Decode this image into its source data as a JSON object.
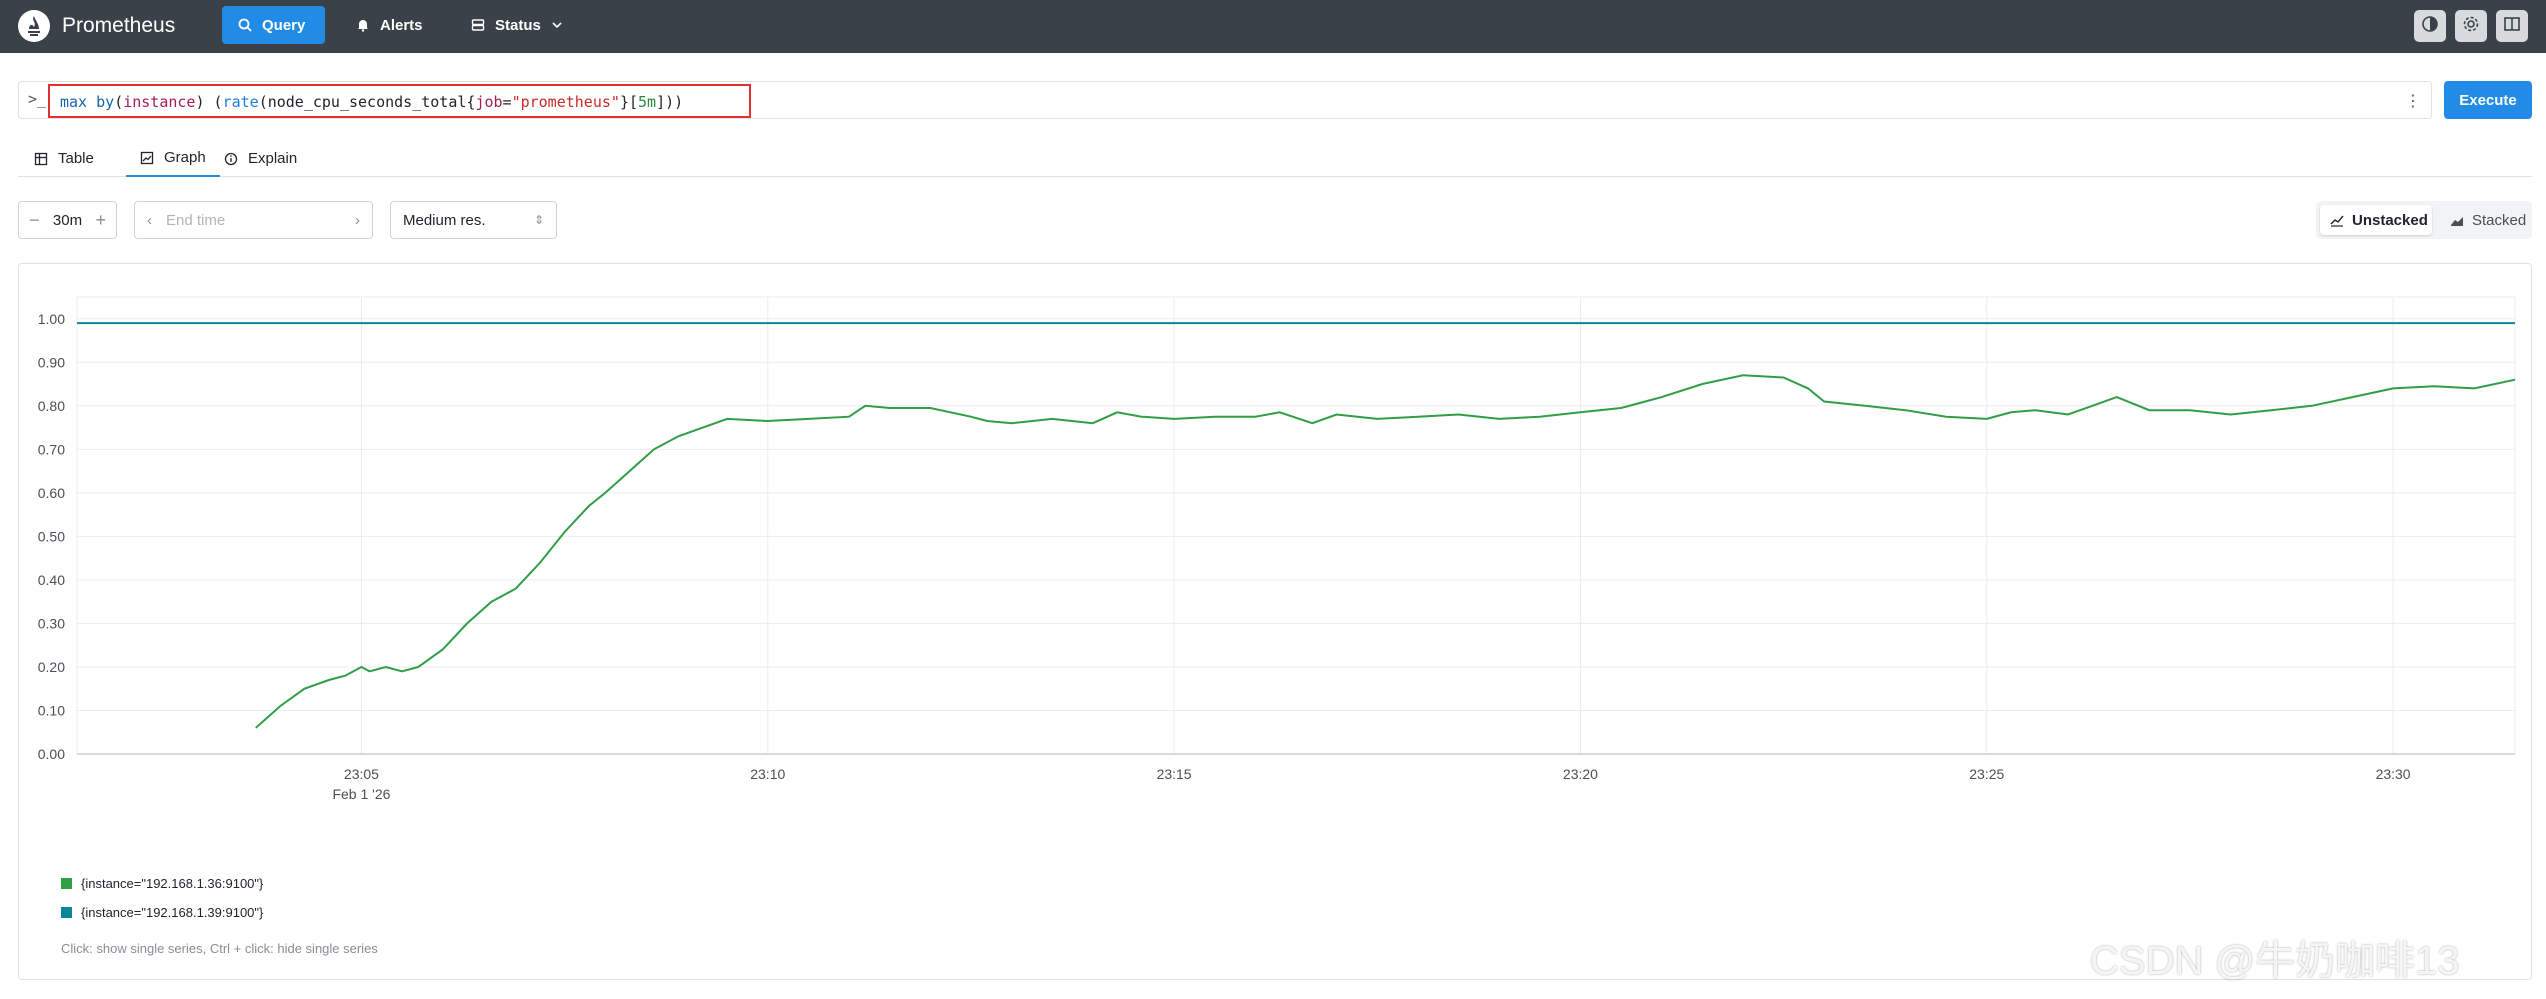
{
  "app": {
    "title": "Prometheus"
  },
  "nav": {
    "query": "Query",
    "alerts": "Alerts",
    "status": "Status"
  },
  "query": {
    "tokens": [
      {
        "t": "max",
        "c": "kw"
      },
      {
        "t": " ",
        "c": "p"
      },
      {
        "t": "by",
        "c": "kw"
      },
      {
        "t": "(",
        "c": "p"
      },
      {
        "t": "instance",
        "c": "lbl"
      },
      {
        "t": ")",
        "c": "p"
      },
      {
        "t": " (",
        "c": "p"
      },
      {
        "t": "rate",
        "c": "fn"
      },
      {
        "t": "(",
        "c": "p"
      },
      {
        "t": "node_cpu_seconds_total",
        "c": "p"
      },
      {
        "t": "{",
        "c": "p"
      },
      {
        "t": "job",
        "c": "lbl"
      },
      {
        "t": "=",
        "c": "p"
      },
      {
        "t": "\"prometheus\"",
        "c": "str"
      },
      {
        "t": "}",
        "c": "p"
      },
      {
        "t": "[",
        "c": "p"
      },
      {
        "t": "5m",
        "c": "num"
      },
      {
        "t": "]))",
        "c": "p"
      }
    ],
    "execute_label": "Execute"
  },
  "tabs": {
    "table": "Table",
    "graph": "Graph",
    "explain": "Explain"
  },
  "controls": {
    "range": "30m",
    "end_time_placeholder": "End time",
    "resolution": "Medium res.",
    "unstacked": "Unstacked",
    "stacked": "Stacked"
  },
  "chart_data": {
    "type": "line",
    "title": "",
    "xlabel": "",
    "ylabel": "",
    "ylim": [
      0,
      1.05
    ],
    "y_ticks": [
      0,
      0.1,
      0.2,
      0.3,
      0.4,
      0.5,
      0.6,
      0.7,
      0.8,
      0.9,
      1.0
    ],
    "y_tick_labels": [
      "0.00",
      "0.10",
      "0.20",
      "0.30",
      "0.40",
      "0.50",
      "0.60",
      "0.70",
      "0.80",
      "0.90",
      "1.00"
    ],
    "x_unit": "minutes after 23:00 (Feb 1 '26)",
    "xlim": [
      1.5,
      31.5
    ],
    "x_ticks": [
      5,
      10,
      15,
      20,
      25,
      30
    ],
    "x_tick_labels": [
      "23:05",
      "23:10",
      "23:15",
      "23:20",
      "23:25",
      "23:30"
    ],
    "x_tick_sublabel": "Feb 1 '26",
    "grid": true,
    "legend_position": "bottom-left",
    "series": [
      {
        "name": "{instance=\"192.168.1.36:9100\"}",
        "color": "#2f9e44",
        "x": [
          3.7,
          4.0,
          4.3,
          4.6,
          4.8,
          5.0,
          5.1,
          5.3,
          5.5,
          5.7,
          6.0,
          6.3,
          6.6,
          6.9,
          7.2,
          7.5,
          7.8,
          8.0,
          8.3,
          8.6,
          8.9,
          9.2,
          9.5,
          10.0,
          10.5,
          11.0,
          11.2,
          11.5,
          12.0,
          12.5,
          12.7,
          13.0,
          13.5,
          14.0,
          14.3,
          14.6,
          15.0,
          15.5,
          16.0,
          16.3,
          16.7,
          17.0,
          17.5,
          18.0,
          18.5,
          19.0,
          19.5,
          20.0,
          20.5,
          21.0,
          21.5,
          22.0,
          22.5,
          22.8,
          23.0,
          23.5,
          24.0,
          24.5,
          25.0,
          25.3,
          25.6,
          26.0,
          26.3,
          26.6,
          27.0,
          27.5,
          28.0,
          28.5,
          29.0,
          29.5,
          30.0,
          30.5,
          31.0,
          31.5
        ],
        "values": [
          0.06,
          0.11,
          0.15,
          0.17,
          0.18,
          0.2,
          0.19,
          0.2,
          0.19,
          0.2,
          0.24,
          0.3,
          0.35,
          0.38,
          0.44,
          0.51,
          0.57,
          0.6,
          0.65,
          0.7,
          0.73,
          0.75,
          0.77,
          0.765,
          0.77,
          0.775,
          0.8,
          0.795,
          0.795,
          0.775,
          0.765,
          0.76,
          0.77,
          0.76,
          0.785,
          0.775,
          0.77,
          0.775,
          0.775,
          0.785,
          0.76,
          0.78,
          0.77,
          0.775,
          0.78,
          0.77,
          0.775,
          0.785,
          0.795,
          0.82,
          0.85,
          0.87,
          0.865,
          0.84,
          0.81,
          0.8,
          0.79,
          0.775,
          0.77,
          0.785,
          0.79,
          0.78,
          0.8,
          0.82,
          0.79,
          0.79,
          0.78,
          0.79,
          0.8,
          0.82,
          0.84,
          0.845,
          0.84,
          0.86
        ]
      },
      {
        "name": "{instance=\"192.168.1.39:9100\"}",
        "color": "#0c8599",
        "x": [
          1.5,
          6.0,
          10.0,
          15.0,
          20.0,
          25.0,
          31.5
        ],
        "values": [
          0.99,
          0.99,
          0.99,
          0.99,
          0.99,
          0.99,
          0.99
        ]
      }
    ],
    "hint": "Click: show single series, Ctrl + click: hide single series"
  },
  "watermark": "CSDN @牛奶咖啡13"
}
